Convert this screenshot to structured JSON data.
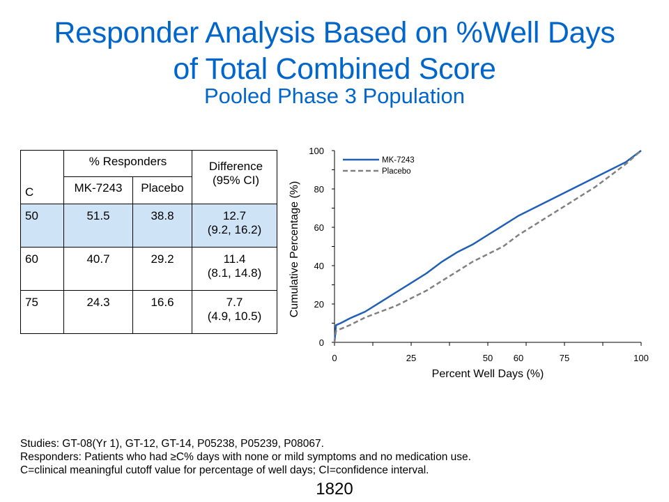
{
  "title": {
    "line1": "Responder Analysis Based on %Well Days",
    "line2": "of Total Combined Score",
    "subtitle": "Pooled Phase 3 Population"
  },
  "table": {
    "header": {
      "c": "C",
      "group": "% Responders",
      "mk": "MK-7243",
      "placebo": "Placebo",
      "diff_line1": "Difference",
      "diff_line2": "(95% CI)"
    },
    "rows": [
      {
        "c": "50",
        "mk": "51.5",
        "placebo": "38.8",
        "diff": "12.7",
        "ci": "(9.2, 16.2)",
        "highlight": true
      },
      {
        "c": "60",
        "mk": "40.7",
        "placebo": "29.2",
        "diff": "11.4",
        "ci": "(8.1, 14.8)",
        "highlight": false
      },
      {
        "c": "75",
        "mk": "24.3",
        "placebo": "16.6",
        "diff": "7.7",
        "ci": "(4.9, 10.5)",
        "highlight": false
      }
    ]
  },
  "colors": {
    "title": "#0066cc",
    "mk_series": "#1f5fb4",
    "placebo_series": "#808080",
    "highlight_row": "#cfe3f7"
  },
  "chart_data": {
    "type": "line",
    "xlabel": "Percent Well Days (%)",
    "ylabel": "Cumulative Percentage (%)",
    "xlim": [
      0,
      100
    ],
    "ylim": [
      0,
      100
    ],
    "x_ticks": [
      0,
      25,
      50,
      60,
      75,
      100
    ],
    "y_ticks": [
      0,
      20,
      40,
      60,
      80,
      100
    ],
    "grid": false,
    "legend_position": "top-left",
    "series": [
      {
        "name": "MK-7243",
        "line_style": "solid",
        "points": [
          [
            0,
            0
          ],
          [
            0.5,
            9
          ],
          [
            2,
            10
          ],
          [
            5,
            12.5
          ],
          [
            10,
            16
          ],
          [
            15,
            21
          ],
          [
            20,
            26
          ],
          [
            25,
            31
          ],
          [
            30,
            36
          ],
          [
            35,
            42
          ],
          [
            40,
            47
          ],
          [
            45,
            51
          ],
          [
            50,
            56
          ],
          [
            55,
            61
          ],
          [
            60,
            66
          ],
          [
            65,
            70
          ],
          [
            70,
            74
          ],
          [
            75,
            78
          ],
          [
            80,
            82
          ],
          [
            85,
            86
          ],
          [
            90,
            90
          ],
          [
            95,
            94
          ],
          [
            100,
            100
          ]
        ]
      },
      {
        "name": "Placebo",
        "line_style": "dashed",
        "points": [
          [
            0,
            0
          ],
          [
            0.5,
            6
          ],
          [
            2,
            7
          ],
          [
            5,
            9
          ],
          [
            10,
            13
          ],
          [
            15,
            16
          ],
          [
            20,
            19
          ],
          [
            25,
            23
          ],
          [
            30,
            27
          ],
          [
            35,
            32
          ],
          [
            40,
            37
          ],
          [
            45,
            42
          ],
          [
            50,
            46
          ],
          [
            55,
            50
          ],
          [
            60,
            56
          ],
          [
            65,
            61
          ],
          [
            70,
            66
          ],
          [
            75,
            71
          ],
          [
            80,
            76
          ],
          [
            85,
            81
          ],
          [
            90,
            87
          ],
          [
            95,
            93
          ],
          [
            100,
            100
          ]
        ]
      }
    ]
  },
  "footnotes": {
    "line1": "Studies: GT-08(Yr 1), GT-12, GT-14, P05238, P05239, P08067.",
    "line2": "Responders: Patients who had ≥C% days with none or mild symptoms and no medication use.",
    "line3": "C=clinical meaningful cutoff value for percentage of well days; CI=confidence interval."
  },
  "page_number": "1820"
}
